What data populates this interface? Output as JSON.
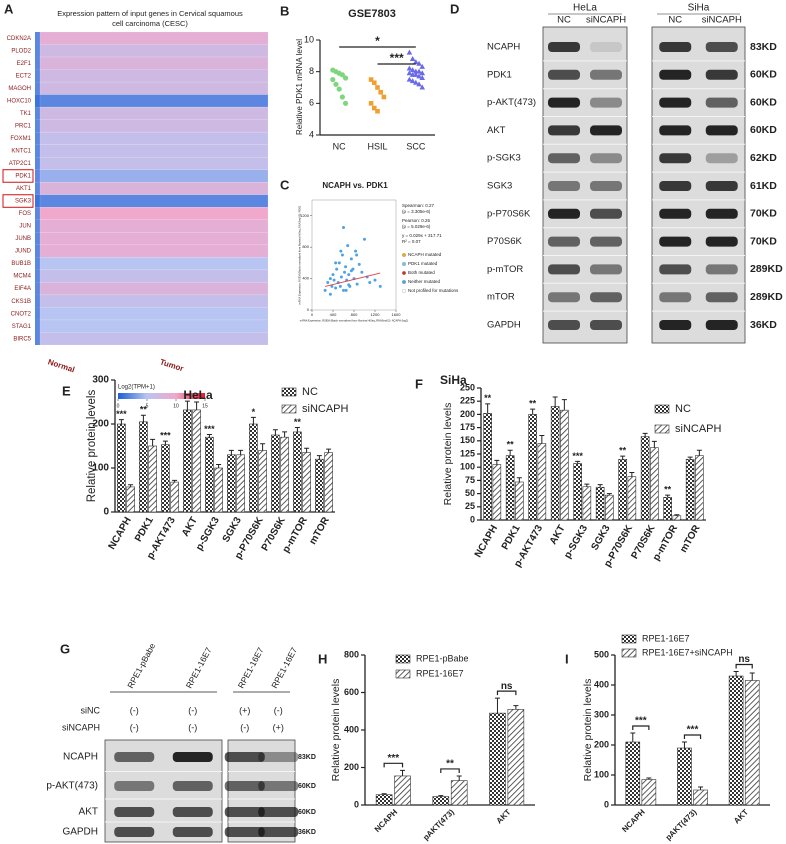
{
  "chart_data": [
    {
      "type": "heatmap",
      "panel": "A",
      "title": [
        "Expression pattern of input genes in Cervical squamous",
        "cell carcinoma (CESC)"
      ],
      "rows": [
        "CDKN2A",
        "PLOD2",
        "E2F1",
        "ECT2",
        "MAGOH",
        "HOXC10",
        "TK1",
        "PRC1",
        "FOXM1",
        "KNTC1",
        "ATP2C1",
        "PDK1",
        "AKT1",
        "SGK3",
        "FOS",
        "JUN",
        "JUNB",
        "JUND",
        "BUB1B",
        "MCM4",
        "EIF4A",
        "CKS1B",
        "CNOT2",
        "STAG1",
        "BIRC5"
      ],
      "columns": [
        "Normal",
        "Tumor"
      ],
      "values": [
        [
          2,
          9
        ],
        [
          2,
          7
        ],
        [
          2,
          8
        ],
        [
          2,
          7
        ],
        [
          2,
          7
        ],
        [
          1,
          2
        ],
        [
          2,
          7
        ],
        [
          2,
          7
        ],
        [
          2,
          6
        ],
        [
          2,
          6
        ],
        [
          2,
          6
        ],
        [
          2,
          4
        ],
        [
          2,
          8
        ],
        [
          1,
          2
        ],
        [
          2,
          10
        ],
        [
          2,
          9
        ],
        [
          2,
          9
        ],
        [
          2,
          9
        ],
        [
          2,
          5
        ],
        [
          2,
          6
        ],
        [
          2,
          8
        ],
        [
          2,
          6
        ],
        [
          2,
          5
        ],
        [
          2,
          5
        ],
        [
          2,
          6
        ]
      ],
      "colorbar_label": "Log2(TPM+1)",
      "clim": [
        0,
        15
      ],
      "cticks": [
        0,
        5,
        10,
        15
      ],
      "colormap": [
        "#1d5fd6",
        "#b8c4f2",
        "#f0a8cc",
        "#e8182a"
      ]
    },
    {
      "type": "strip",
      "panel": "B",
      "title": "GSE7803",
      "categories": [
        "NC",
        "HSIL",
        "SCC"
      ],
      "colors": [
        "#7ed67e",
        "#f0a030",
        "#6a6ae8"
      ],
      "values": [
        [
          8.1,
          8.0,
          7.9,
          7.8,
          7.6,
          7.5,
          7.2,
          6.9,
          6.4,
          6.0
        ],
        [
          7.5,
          7.3,
          7.0,
          6.7,
          6.4,
          6.0,
          5.7,
          5.5
        ],
        [
          9.2,
          8.8,
          8.6,
          8.5,
          8.3,
          8.2,
          8.1,
          8.0,
          8.0,
          7.9,
          7.9,
          7.8,
          7.8,
          7.7,
          7.6,
          7.5,
          7.4,
          7.3,
          7.2,
          7.0
        ]
      ],
      "ylabel": "Relative PDK1 mRNA level",
      "ylim": [
        4,
        10
      ],
      "yticks": [
        4,
        6,
        8,
        10
      ],
      "annotations": [
        "*",
        "***"
      ]
    },
    {
      "type": "scatter",
      "panel": "C",
      "title": "NCAPH vs. PDK1",
      "color": "#4da3e8",
      "x": [
        250,
        300,
        350,
        380,
        400,
        420,
        450,
        470,
        500,
        520,
        540,
        560,
        580,
        600,
        620,
        640,
        660,
        680,
        700,
        720,
        750,
        780,
        800,
        830,
        860,
        900,
        950,
        1000,
        1050,
        1100,
        1200,
        1300,
        450,
        550,
        650,
        750,
        850,
        350,
        600,
        700
      ],
      "y": [
        250,
        350,
        200,
        300,
        450,
        380,
        280,
        520,
        350,
        600,
        300,
        420,
        700,
        250,
        480,
        550,
        380,
        820,
        450,
        300,
        650,
        520,
        400,
        750,
        330,
        580,
        480,
        900,
        420,
        350,
        380,
        300,
        600,
        750,
        250,
        500,
        700,
        400,
        1050,
        320
      ],
      "trend": {
        "x": [
          250,
          1300
        ],
        "y": [
          300,
          470
        ],
        "color": "#e04040"
      },
      "xlabel": "mRNA Expression, RSEM (Batch normalized from Illumina HiSeq_RNASeqV2): NCAPH (log2)",
      "ylabel": "mRNA Expression, RSEM (Batch normalized from Illumina HiSeq_RNASeqV2): PDK1",
      "xlim": [
        0,
        1600
      ],
      "ylim": [
        0,
        1400
      ],
      "xticks": [
        0,
        400,
        800,
        1200,
        1600
      ],
      "yticks": [
        0,
        400,
        800,
        1200
      ],
      "notes": [
        "Spearman: 0.27",
        "(p = 3.305e-6)",
        "Pearson: 0.26",
        "(p = 5.029e-6)",
        "y = 0.029x + 317.71",
        "R² = 0.07"
      ],
      "legend": [
        {
          "name": "NCAPH mutated",
          "color": "#e8b020"
        },
        {
          "name": "PDK1 mutated",
          "color": "#6fc6e8"
        },
        {
          "name": "Both mutated",
          "color": "#d03030"
        },
        {
          "name": "Neither mutated",
          "color": "#4da3e8"
        },
        {
          "name": "Not profiled for mutations",
          "color": "#ffffff"
        }
      ]
    },
    {
      "type": "bar",
      "panel": "E",
      "title": "HeLa",
      "ylabel": "Relative protein levels",
      "categories": [
        "NCAPH",
        "PDK1",
        "p-AKT473",
        "AKT",
        "p-SGK3",
        "SGK3",
        "p-P70S6K",
        "P70S6K",
        "p-mTOR",
        "mTOR"
      ],
      "series": [
        {
          "name": "NC",
          "pattern": "checker",
          "values": [
            200,
            205,
            153,
            232,
            170,
            130,
            200,
            175,
            182,
            120
          ],
          "errors": [
            10,
            15,
            8,
            20,
            6,
            10,
            15,
            12,
            10,
            8
          ]
        },
        {
          "name": "siNCAPH",
          "pattern": "hatch",
          "values": [
            57,
            150,
            68,
            232,
            100,
            130,
            140,
            170,
            135,
            135
          ],
          "errors": [
            5,
            15,
            4,
            18,
            8,
            10,
            15,
            12,
            10,
            8
          ]
        }
      ],
      "significance": [
        "***",
        "**",
        "***",
        null,
        "***",
        null,
        "*",
        null,
        "**",
        null
      ],
      "ylim": [
        0,
        300
      ],
      "yticks": [
        0,
        100,
        200,
        300
      ]
    },
    {
      "type": "bar",
      "panel": "F",
      "title": "SiHa",
      "ylabel": "Relative protein levels",
      "categories": [
        "NCAPH",
        "PDK1",
        "p-AKT473",
        "AKT",
        "p-SGK3",
        "SGK3",
        "p-P70S6K",
        "P70S6K",
        "p-mTOR",
        "mTOR"
      ],
      "series": [
        {
          "name": "NC",
          "pattern": "checker",
          "values": [
            202,
            122,
            200,
            215,
            107,
            62,
            115,
            158,
            43,
            115
          ],
          "errors": [
            18,
            10,
            10,
            18,
            4,
            5,
            6,
            6,
            4,
            4
          ]
        },
        {
          "name": "siNCAPH",
          "pattern": "hatch",
          "values": [
            105,
            72,
            145,
            208,
            63,
            47,
            82,
            137,
            8,
            122
          ],
          "errors": [
            8,
            8,
            15,
            20,
            5,
            3,
            8,
            12,
            2,
            10
          ]
        }
      ],
      "significance": [
        "**",
        "**",
        "**",
        null,
        "***",
        null,
        "**",
        null,
        "**",
        null
      ],
      "ylim": [
        0,
        250
      ],
      "yticks": [
        0,
        25,
        50,
        75,
        100,
        125,
        150,
        175,
        200,
        225,
        250
      ]
    },
    {
      "type": "bar",
      "panel": "H",
      "ylabel": "Relative protein levels",
      "categories": [
        "NCAPH",
        "pAKT(473)",
        "AKT"
      ],
      "series": [
        {
          "name": "RPE1-pBabe",
          "pattern": "checker",
          "values": [
            55,
            45,
            490
          ],
          "errors": [
            5,
            5,
            80
          ]
        },
        {
          "name": "RPE1-16E7",
          "pattern": "hatch",
          "values": [
            155,
            130,
            510
          ],
          "errors": [
            30,
            25,
            20
          ]
        }
      ],
      "significance": [
        "***",
        "**",
        "ns"
      ],
      "ylim": [
        0,
        800
      ],
      "yticks": [
        0,
        200,
        400,
        600,
        800
      ]
    },
    {
      "type": "bar",
      "panel": "I",
      "ylabel": "Relative protein levels",
      "categories": [
        "NCAPH",
        "pAKT(473)",
        "AKT"
      ],
      "series": [
        {
          "name": "RPE1-16E7",
          "pattern": "checker",
          "values": [
            210,
            190,
            430
          ],
          "errors": [
            30,
            20,
            15
          ]
        },
        {
          "name": "RPE1-16E7+siNCAPH",
          "pattern": "hatch",
          "values": [
            85,
            50,
            415
          ],
          "errors": [
            5,
            10,
            25
          ]
        }
      ],
      "significance": [
        "***",
        "***",
        "ns"
      ],
      "ylim": [
        0,
        500
      ],
      "yticks": [
        0,
        100,
        200,
        300,
        400,
        500
      ]
    }
  ],
  "blots": [
    {
      "panel": "D",
      "groups": [
        {
          "cell": "HeLa",
          "lanes": [
            "NC",
            "siNCAPH"
          ]
        },
        {
          "cell": "SiHa",
          "lanes": [
            "NC",
            "siNCAPH"
          ]
        }
      ],
      "proteins": [
        "NCAPH",
        "PDK1",
        "p-AKT(473)",
        "AKT",
        "p-SGK3",
        "SGK3",
        "p-P70S6K",
        "P70S6K",
        "p-mTOR",
        "mTOR",
        "GAPDH"
      ],
      "sizes": [
        "83KD",
        "60KD",
        "60KD",
        "60KD",
        "62KD",
        "61KD",
        "70KD",
        "70KD",
        "289KD",
        "289KD",
        "36KD"
      ]
    },
    {
      "panel": "G",
      "groups": [
        {
          "lanes": [
            "RPE1-pBabe",
            "RPE1-16E7"
          ]
        },
        {
          "lanes": [
            "RPE1-16E7",
            "RPE1-16E7"
          ]
        }
      ],
      "treatments": [
        {
          "name": "siNC",
          "marks": [
            "(-)",
            "(-)",
            "(+)",
            "(-)"
          ]
        },
        {
          "name": "siNCAPH",
          "marks": [
            "(-)",
            "(-)",
            "(-)",
            "(+)"
          ]
        }
      ],
      "proteins": [
        "NCAPH",
        "p-AKT(473)",
        "AKT",
        "GAPDH"
      ],
      "sizes": [
        "83KD",
        "60KD",
        "60KD",
        "36KD"
      ]
    }
  ]
}
